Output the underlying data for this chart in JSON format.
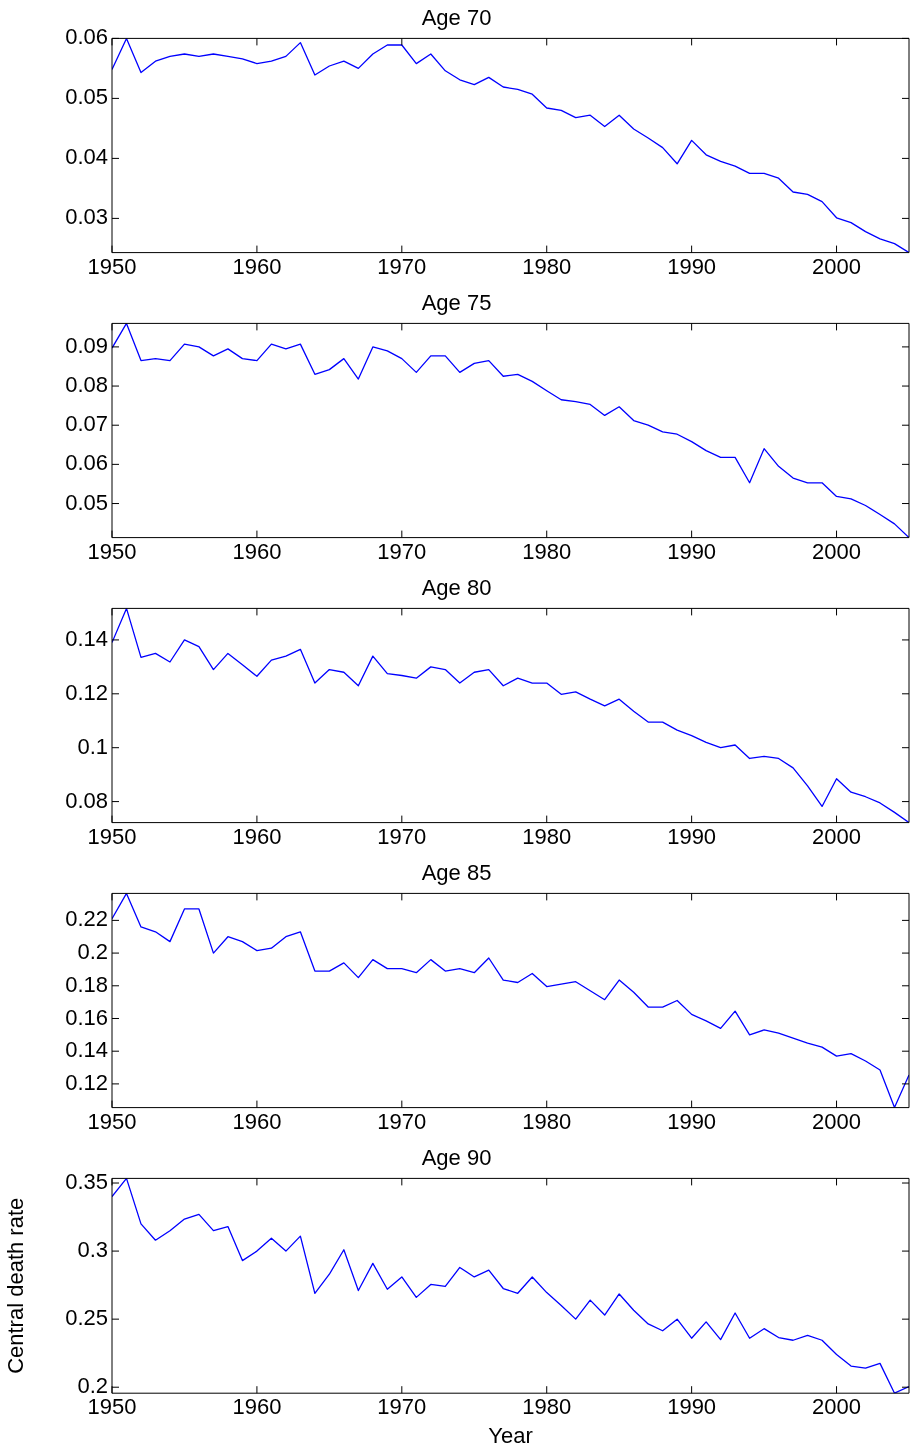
{
  "chart_data": [
    {
      "type": "line",
      "title": "Age 70",
      "color": "#0000ff",
      "grid": false,
      "marker": "none",
      "xlim": [
        1950,
        2005
      ],
      "xticks": [
        1950,
        1960,
        1970,
        1980,
        1990,
        2000
      ],
      "ylim": [
        0.0243,
        0.06
      ],
      "yticks": [
        0.03,
        0.04,
        0.05,
        0.06
      ],
      "x": [
        1950,
        1951,
        1952,
        1953,
        1954,
        1955,
        1956,
        1957,
        1958,
        1959,
        1960,
        1961,
        1962,
        1963,
        1964,
        1965,
        1966,
        1967,
        1968,
        1969,
        1970,
        1971,
        1972,
        1973,
        1974,
        1975,
        1976,
        1977,
        1978,
        1979,
        1980,
        1981,
        1982,
        1983,
        1984,
        1985,
        1986,
        1987,
        1988,
        1989,
        1990,
        1991,
        1992,
        1993,
        1994,
        1995,
        1996,
        1997,
        1998,
        1999,
        2000,
        2001,
        2002,
        2003,
        2004,
        2005
      ],
      "values": [
        0.0548,
        0.06,
        0.0543,
        0.0562,
        0.057,
        0.0574,
        0.057,
        0.0574,
        0.057,
        0.0566,
        0.0558,
        0.0562,
        0.057,
        0.0593,
        0.0539,
        0.0554,
        0.0562,
        0.055,
        0.0574,
        0.0589,
        0.0589,
        0.0558,
        0.0574,
        0.0546,
        0.0531,
        0.0523,
        0.0535,
        0.0519,
        0.0515,
        0.0507,
        0.0484,
        0.048,
        0.0468,
        0.0472,
        0.0453,
        0.0472,
        0.0449,
        0.0434,
        0.0418,
        0.0391,
        0.043,
        0.0406,
        0.0395,
        0.0387,
        0.0375,
        0.0375,
        0.0367,
        0.0344,
        0.034,
        0.0328,
        0.0301,
        0.0293,
        0.0278,
        0.0266,
        0.0258,
        0.0243
      ]
    },
    {
      "type": "line",
      "title": "Age 75",
      "color": "#0000ff",
      "grid": false,
      "marker": "none",
      "xlim": [
        1950,
        2005
      ],
      "xticks": [
        1950,
        1960,
        1970,
        1980,
        1990,
        2000
      ],
      "ylim": [
        0.0413,
        0.096
      ],
      "yticks": [
        0.05,
        0.06,
        0.07,
        0.08,
        0.09
      ],
      "x": [
        1950,
        1951,
        1952,
        1953,
        1954,
        1955,
        1956,
        1957,
        1958,
        1959,
        1960,
        1961,
        1962,
        1963,
        1964,
        1965,
        1966,
        1967,
        1968,
        1969,
        1970,
        1971,
        1972,
        1973,
        1974,
        1975,
        1976,
        1977,
        1978,
        1979,
        1980,
        1981,
        1982,
        1983,
        1984,
        1985,
        1986,
        1987,
        1988,
        1989,
        1990,
        1991,
        1992,
        1993,
        1994,
        1995,
        1996,
        1997,
        1998,
        1999,
        2000,
        2001,
        2002,
        2003,
        2004,
        2005
      ],
      "values": [
        0.0897,
        0.096,
        0.0865,
        0.087,
        0.0865,
        0.0907,
        0.09,
        0.0877,
        0.0895,
        0.087,
        0.0865,
        0.0907,
        0.0895,
        0.0907,
        0.083,
        0.0842,
        0.087,
        0.0818,
        0.09,
        0.089,
        0.087,
        0.0835,
        0.0877,
        0.0877,
        0.0835,
        0.0858,
        0.0865,
        0.0825,
        0.083,
        0.0812,
        0.0788,
        0.0765,
        0.076,
        0.0753,
        0.0725,
        0.0747,
        0.0712,
        0.07,
        0.0683,
        0.0677,
        0.0658,
        0.0635,
        0.0618,
        0.0618,
        0.0553,
        0.064,
        0.0595,
        0.0565,
        0.0553,
        0.0553,
        0.0518,
        0.0512,
        0.0495,
        0.0472,
        0.0448,
        0.0413
      ]
    },
    {
      "type": "line",
      "title": "Age 80",
      "color": "#0000ff",
      "grid": false,
      "marker": "none",
      "xlim": [
        1950,
        2005
      ],
      "xticks": [
        1950,
        1960,
        1970,
        1980,
        1990,
        2000
      ],
      "ylim": [
        0.0722,
        0.1517
      ],
      "yticks": [
        0.08,
        0.1,
        0.12,
        0.14
      ],
      "x": [
        1950,
        1951,
        1952,
        1953,
        1954,
        1955,
        1956,
        1957,
        1958,
        1959,
        1960,
        1961,
        1962,
        1963,
        1964,
        1965,
        1966,
        1967,
        1968,
        1969,
        1970,
        1971,
        1972,
        1973,
        1974,
        1975,
        1976,
        1977,
        1978,
        1979,
        1980,
        1981,
        1982,
        1983,
        1984,
        1985,
        1986,
        1987,
        1988,
        1989,
        1990,
        1991,
        1992,
        1993,
        1994,
        1995,
        1996,
        1997,
        1998,
        1999,
        2000,
        2001,
        2002,
        2003,
        2004,
        2005
      ],
      "values": [
        0.139,
        0.1517,
        0.1335,
        0.135,
        0.1318,
        0.14,
        0.1375,
        0.129,
        0.135,
        0.1308,
        0.1265,
        0.1325,
        0.134,
        0.1365,
        0.124,
        0.129,
        0.128,
        0.123,
        0.134,
        0.1275,
        0.1268,
        0.1258,
        0.13,
        0.129,
        0.124,
        0.128,
        0.129,
        0.123,
        0.1258,
        0.124,
        0.124,
        0.1198,
        0.1207,
        0.118,
        0.1155,
        0.118,
        0.1135,
        0.1095,
        0.1095,
        0.1065,
        0.1045,
        0.102,
        0.1,
        0.101,
        0.096,
        0.0968,
        0.096,
        0.0925,
        0.0858,
        0.0782,
        0.0885,
        0.0835,
        0.0818,
        0.0795,
        0.076,
        0.0722
      ]
    },
    {
      "type": "line",
      "title": "Age 85",
      "color": "#0000ff",
      "grid": false,
      "marker": "none",
      "xlim": [
        1950,
        2005
      ],
      "xticks": [
        1950,
        1960,
        1970,
        1980,
        1990,
        2000
      ],
      "ylim": [
        0.1055,
        0.2365
      ],
      "yticks": [
        0.12,
        0.14,
        0.16,
        0.18,
        0.2,
        0.22
      ],
      "x": [
        1950,
        1951,
        1952,
        1953,
        1954,
        1955,
        1956,
        1957,
        1958,
        1959,
        1960,
        1961,
        1962,
        1963,
        1964,
        1965,
        1966,
        1967,
        1968,
        1969,
        1970,
        1971,
        1972,
        1973,
        1974,
        1975,
        1976,
        1977,
        1978,
        1979,
        1980,
        1981,
        1982,
        1983,
        1984,
        1985,
        1986,
        1987,
        1988,
        1989,
        1990,
        1991,
        1992,
        1993,
        1994,
        1995,
        1996,
        1997,
        1998,
        1999,
        2000,
        2001,
        2002,
        2003,
        2004,
        2005
      ],
      "values": [
        0.221,
        0.2365,
        0.216,
        0.213,
        0.207,
        0.227,
        0.227,
        0.2,
        0.21,
        0.207,
        0.2015,
        0.203,
        0.21,
        0.213,
        0.189,
        0.189,
        0.194,
        0.185,
        0.196,
        0.1905,
        0.1905,
        0.188,
        0.196,
        0.189,
        0.1905,
        0.188,
        0.197,
        0.1835,
        0.182,
        0.1875,
        0.1795,
        0.181,
        0.1825,
        0.177,
        0.1715,
        0.1835,
        0.176,
        0.167,
        0.167,
        0.171,
        0.1625,
        0.1585,
        0.154,
        0.1645,
        0.15,
        0.153,
        0.151,
        0.148,
        0.145,
        0.1425,
        0.137,
        0.1385,
        0.134,
        0.1285,
        0.1055,
        0.1255
      ]
    },
    {
      "type": "line",
      "title": "Age 90",
      "xlabel": "Year",
      "ylabel": "Central death rate",
      "color": "#0000ff",
      "grid": false,
      "marker": "none",
      "xlim": [
        1950,
        2005
      ],
      "xticks": [
        1950,
        1960,
        1970,
        1980,
        1990,
        2000
      ],
      "ylim": [
        0.1956,
        0.3534
      ],
      "yticks": [
        0.2,
        0.25,
        0.3,
        0.35
      ],
      "x": [
        1950,
        1951,
        1952,
        1953,
        1954,
        1955,
        1956,
        1957,
        1958,
        1959,
        1960,
        1961,
        1962,
        1963,
        1964,
        1965,
        1966,
        1967,
        1968,
        1969,
        1970,
        1971,
        1972,
        1973,
        1974,
        1975,
        1976,
        1977,
        1978,
        1979,
        1980,
        1981,
        1982,
        1983,
        1984,
        1985,
        1986,
        1987,
        1988,
        1989,
        1990,
        1991,
        1992,
        1993,
        1994,
        1995,
        1996,
        1997,
        1998,
        1999,
        2000,
        2001,
        2002,
        2003,
        2004,
        2005
      ],
      "values": [
        0.34,
        0.3534,
        0.32,
        0.308,
        0.315,
        0.3235,
        0.327,
        0.315,
        0.318,
        0.293,
        0.3,
        0.3095,
        0.3,
        0.311,
        0.269,
        0.283,
        0.301,
        0.271,
        0.291,
        0.272,
        0.281,
        0.266,
        0.2755,
        0.274,
        0.288,
        0.281,
        0.286,
        0.2725,
        0.269,
        0.281,
        0.2695,
        0.26,
        0.25,
        0.264,
        0.253,
        0.2685,
        0.2565,
        0.2465,
        0.2415,
        0.25,
        0.236,
        0.248,
        0.235,
        0.2545,
        0.236,
        0.243,
        0.2365,
        0.2345,
        0.238,
        0.2345,
        0.224,
        0.2155,
        0.214,
        0.2175,
        0.1956,
        0.2005
      ]
    }
  ]
}
